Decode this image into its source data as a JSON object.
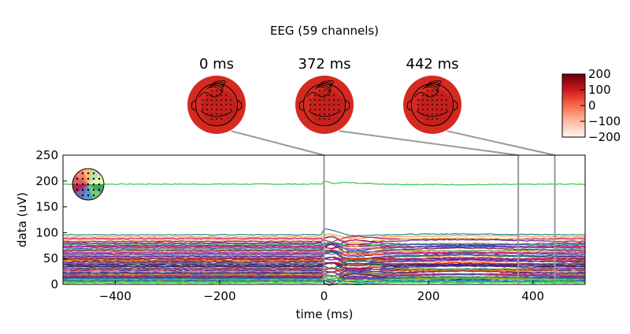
{
  "figure": {
    "title": "EEG (59 channels)"
  },
  "topomaps": [
    {
      "time_label": "0 ms",
      "time": 0
    },
    {
      "time_label": "372 ms",
      "time": 372
    },
    {
      "time_label": "442 ms",
      "time": 442
    }
  ],
  "colorbar": {
    "min": -200,
    "max": 200,
    "ticks": [
      200,
      100,
      0,
      -100,
      -200
    ],
    "tick_labels": [
      "200",
      "100",
      "0",
      "−100",
      "−200"
    ],
    "colors": [
      "#fff5f0",
      "#fcbba1",
      "#fb6a4a",
      "#cb181d",
      "#67000d"
    ]
  },
  "chart_data": {
    "type": "line",
    "title": "",
    "xlabel": "time (ms)",
    "ylabel": "data (uV)",
    "xlim": [
      -500,
      500
    ],
    "ylim": [
      0,
      250
    ],
    "xticks": [
      -400,
      -200,
      0,
      200,
      400
    ],
    "xtick_labels": [
      "−400",
      "−200",
      "0",
      "200",
      "400"
    ],
    "yticks": [
      0,
      50,
      100,
      150,
      200,
      250
    ],
    "ytick_labels": [
      "0",
      "50",
      "100",
      "150",
      "200",
      "250"
    ],
    "grid": false,
    "legend": "none",
    "marker_times": [
      0,
      372,
      442
    ],
    "channel_baselines": [
      194,
      96,
      92,
      89,
      86,
      83,
      80,
      78,
      76,
      74,
      72,
      70,
      68,
      66,
      64,
      62,
      60,
      58,
      56,
      54,
      52,
      50,
      49,
      47,
      46,
      44,
      43,
      41,
      40,
      38,
      37,
      35,
      34,
      32,
      31,
      29,
      28,
      26,
      25,
      23,
      22,
      21,
      20,
      19,
      18,
      17,
      16,
      15,
      14,
      13,
      12,
      11,
      10,
      9,
      8,
      7,
      6,
      5,
      3
    ],
    "channel_colors": [
      "#2ecc40",
      "#1f8a8a",
      "#f0a050",
      "#c2185b",
      "#e8a040",
      "#7b1fa2",
      "#8b0045",
      "#2ecc40",
      "#3f51b5",
      "#d81b60",
      "#9c27b0",
      "#1565c0",
      "#ff9800",
      "#880e4f",
      "#4caf50",
      "#ab47bc",
      "#e91e63",
      "#3949ab",
      "#f57c00",
      "#6a1b9a",
      "#00897b",
      "#c62828",
      "#ad1457",
      "#5e35b1",
      "#ef6c00",
      "#283593",
      "#8e24aa",
      "#2e7d32",
      "#d84315",
      "#4a148c",
      "#00695c",
      "#b71c1c",
      "#1a237e",
      "#ff7043",
      "#7b1fa2",
      "#388e3c",
      "#c2185b",
      "#303f9f",
      "#fb8c00",
      "#6a1b9a",
      "#00796b",
      "#ad1457",
      "#1976d2",
      "#ffa726",
      "#8e24aa",
      "#43a047",
      "#e53935",
      "#3f51b5",
      "#8b0045",
      "#5e35b1",
      "#2e7d32",
      "#1565c0",
      "#26a69a",
      "#ff9800",
      "#9c27b0",
      "#2ecc40",
      "#0277bd",
      "#2ecc40",
      "#2ecc40"
    ]
  }
}
